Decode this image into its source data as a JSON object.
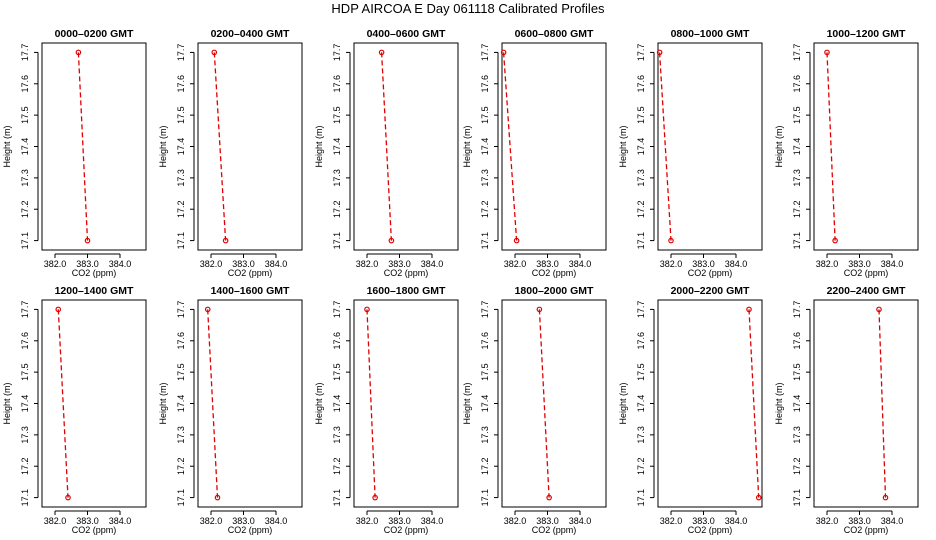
{
  "title": "HDP  AIRCOA E  Day 061118  Calibrated Profiles",
  "chart_data": [
    {
      "type": "line",
      "title": "0000–0200 GMT",
      "xlabel": "CO2 (ppm)",
      "ylabel": "Height (m)",
      "xlim": [
        381.6,
        384.8
      ],
      "ylim": [
        17.07,
        17.73
      ],
      "xticks": [
        "382.0",
        "383.0",
        "384.0"
      ],
      "xtick_values": [
        382,
        383,
        384
      ],
      "yticks": [
        "17.1",
        "17.2",
        "17.3",
        "17.4",
        "17.5",
        "17.6",
        "17.7"
      ],
      "ytick_values": [
        17.1,
        17.2,
        17.3,
        17.4,
        17.5,
        17.6,
        17.7
      ],
      "series": [
        {
          "x": [
            382.72,
            383.0
          ],
          "y": [
            17.7,
            17.1
          ]
        }
      ]
    },
    {
      "type": "line",
      "title": "0200–0400 GMT",
      "xlabel": "CO2 (ppm)",
      "ylabel": "Height (m)",
      "xlim": [
        381.6,
        384.8
      ],
      "ylim": [
        17.07,
        17.73
      ],
      "xticks": [
        "382.0",
        "383.0",
        "384.0"
      ],
      "xtick_values": [
        382,
        383,
        384
      ],
      "yticks": [
        "17.1",
        "17.2",
        "17.3",
        "17.4",
        "17.5",
        "17.6",
        "17.7"
      ],
      "ytick_values": [
        17.1,
        17.2,
        17.3,
        17.4,
        17.5,
        17.6,
        17.7
      ],
      "series": [
        {
          "x": [
            382.1,
            382.45
          ],
          "y": [
            17.7,
            17.1
          ]
        }
      ]
    },
    {
      "type": "line",
      "title": "0400–0600 GMT",
      "xlabel": "CO2 (ppm)",
      "ylabel": "Height (m)",
      "xlim": [
        381.6,
        384.8
      ],
      "ylim": [
        17.07,
        17.73
      ],
      "xticks": [
        "382.0",
        "383.0",
        "384.0"
      ],
      "xtick_values": [
        382,
        383,
        384
      ],
      "yticks": [
        "17.1",
        "17.2",
        "17.3",
        "17.4",
        "17.5",
        "17.6",
        "17.7"
      ],
      "ytick_values": [
        17.1,
        17.2,
        17.3,
        17.4,
        17.5,
        17.6,
        17.7
      ],
      "series": [
        {
          "x": [
            382.45,
            382.75
          ],
          "y": [
            17.7,
            17.1
          ]
        }
      ]
    },
    {
      "type": "line",
      "title": "0600–0800 GMT",
      "xlabel": "CO2 (ppm)",
      "ylabel": "Height (m)",
      "xlim": [
        381.6,
        384.8
      ],
      "ylim": [
        17.07,
        17.73
      ],
      "xticks": [
        "382.0",
        "383.0",
        "384.0"
      ],
      "xtick_values": [
        382,
        383,
        384
      ],
      "yticks": [
        "17.1",
        "17.2",
        "17.3",
        "17.4",
        "17.5",
        "17.6",
        "17.7"
      ],
      "ytick_values": [
        17.1,
        17.2,
        17.3,
        17.4,
        17.5,
        17.6,
        17.7
      ],
      "series": [
        {
          "x": [
            381.65,
            382.05
          ],
          "y": [
            17.7,
            17.1
          ]
        }
      ]
    },
    {
      "type": "line",
      "title": "0800–1000 GMT",
      "xlabel": "CO2 (ppm)",
      "ylabel": "Height (m)",
      "xlim": [
        381.6,
        384.8
      ],
      "ylim": [
        17.07,
        17.73
      ],
      "xticks": [
        "382.0",
        "383.0",
        "384.0"
      ],
      "xtick_values": [
        382,
        383,
        384
      ],
      "yticks": [
        "17.1",
        "17.2",
        "17.3",
        "17.4",
        "17.5",
        "17.6",
        "17.7"
      ],
      "ytick_values": [
        17.1,
        17.2,
        17.3,
        17.4,
        17.5,
        17.6,
        17.7
      ],
      "series": [
        {
          "x": [
            381.65,
            382.0
          ],
          "y": [
            17.7,
            17.1
          ]
        }
      ]
    },
    {
      "type": "line",
      "title": "1000–1200 GMT",
      "xlabel": "CO2 (ppm)",
      "ylabel": "Height (m)",
      "xlim": [
        381.6,
        384.8
      ],
      "ylim": [
        17.07,
        17.73
      ],
      "xticks": [
        "382.0",
        "383.0",
        "384.0"
      ],
      "xtick_values": [
        382,
        383,
        384
      ],
      "yticks": [
        "17.1",
        "17.2",
        "17.3",
        "17.4",
        "17.5",
        "17.6",
        "17.7"
      ],
      "ytick_values": [
        17.1,
        17.2,
        17.3,
        17.4,
        17.5,
        17.6,
        17.7
      ],
      "series": [
        {
          "x": [
            382.0,
            382.25
          ],
          "y": [
            17.7,
            17.1
          ]
        }
      ]
    },
    {
      "type": "line",
      "title": "1200–1400 GMT",
      "xlabel": "CO2 (ppm)",
      "ylabel": "Height (m)",
      "xlim": [
        381.6,
        384.8
      ],
      "ylim": [
        17.07,
        17.73
      ],
      "xticks": [
        "382.0",
        "383.0",
        "384.0"
      ],
      "xtick_values": [
        382,
        383,
        384
      ],
      "yticks": [
        "17.1",
        "17.2",
        "17.3",
        "17.4",
        "17.5",
        "17.6",
        "17.7"
      ],
      "ytick_values": [
        17.1,
        17.2,
        17.3,
        17.4,
        17.5,
        17.6,
        17.7
      ],
      "series": [
        {
          "x": [
            382.1,
            382.4
          ],
          "y": [
            17.7,
            17.1
          ]
        }
      ]
    },
    {
      "type": "line",
      "title": "1400–1600 GMT",
      "xlabel": "CO2 (ppm)",
      "ylabel": "Height (m)",
      "xlim": [
        381.6,
        384.8
      ],
      "ylim": [
        17.07,
        17.73
      ],
      "xticks": [
        "382.0",
        "383.0",
        "384.0"
      ],
      "xtick_values": [
        382,
        383,
        384
      ],
      "yticks": [
        "17.1",
        "17.2",
        "17.3",
        "17.4",
        "17.5",
        "17.6",
        "17.7"
      ],
      "ytick_values": [
        17.1,
        17.2,
        17.3,
        17.4,
        17.5,
        17.6,
        17.7
      ],
      "series": [
        {
          "x": [
            381.9,
            382.2
          ],
          "y": [
            17.7,
            17.1
          ]
        }
      ]
    },
    {
      "type": "line",
      "title": "1600–1800 GMT",
      "xlabel": "CO2 (ppm)",
      "ylabel": "Height (m)",
      "xlim": [
        381.6,
        384.8
      ],
      "ylim": [
        17.07,
        17.73
      ],
      "xticks": [
        "382.0",
        "383.0",
        "384.0"
      ],
      "xtick_values": [
        382,
        383,
        384
      ],
      "yticks": [
        "17.1",
        "17.2",
        "17.3",
        "17.4",
        "17.5",
        "17.6",
        "17.7"
      ],
      "ytick_values": [
        17.1,
        17.2,
        17.3,
        17.4,
        17.5,
        17.6,
        17.7
      ],
      "series": [
        {
          "x": [
            382.0,
            382.25
          ],
          "y": [
            17.7,
            17.1
          ]
        }
      ]
    },
    {
      "type": "line",
      "title": "1800–2000 GMT",
      "xlabel": "CO2 (ppm)",
      "ylabel": "Height (m)",
      "xlim": [
        381.6,
        384.8
      ],
      "ylim": [
        17.07,
        17.73
      ],
      "xticks": [
        "382.0",
        "383.0",
        "384.0"
      ],
      "xtick_values": [
        382,
        383,
        384
      ],
      "yticks": [
        "17.1",
        "17.2",
        "17.3",
        "17.4",
        "17.5",
        "17.6",
        "17.7"
      ],
      "ytick_values": [
        17.1,
        17.2,
        17.3,
        17.4,
        17.5,
        17.6,
        17.7
      ],
      "series": [
        {
          "x": [
            382.75,
            383.05
          ],
          "y": [
            17.7,
            17.1
          ]
        }
      ]
    },
    {
      "type": "line",
      "title": "2000–2200 GMT",
      "xlabel": "CO2 (ppm)",
      "ylabel": "Height (m)",
      "xlim": [
        381.6,
        384.8
      ],
      "ylim": [
        17.07,
        17.73
      ],
      "xticks": [
        "382.0",
        "383.0",
        "384.0"
      ],
      "xtick_values": [
        382,
        383,
        384
      ],
      "yticks": [
        "17.1",
        "17.2",
        "17.3",
        "17.4",
        "17.5",
        "17.6",
        "17.7"
      ],
      "ytick_values": [
        17.1,
        17.2,
        17.3,
        17.4,
        17.5,
        17.6,
        17.7
      ],
      "series": [
        {
          "x": [
            384.4,
            384.7
          ],
          "y": [
            17.7,
            17.1
          ]
        }
      ]
    },
    {
      "type": "line",
      "title": "2200–2400 GMT",
      "xlabel": "CO2 (ppm)",
      "ylabel": "Height (m)",
      "xlim": [
        381.6,
        384.8
      ],
      "ylim": [
        17.07,
        17.73
      ],
      "xticks": [
        "382.0",
        "383.0",
        "384.0"
      ],
      "xtick_values": [
        382,
        383,
        384
      ],
      "yticks": [
        "17.1",
        "17.2",
        "17.3",
        "17.4",
        "17.5",
        "17.6",
        "17.7"
      ],
      "ytick_values": [
        17.1,
        17.2,
        17.3,
        17.4,
        17.5,
        17.6,
        17.7
      ],
      "series": [
        {
          "x": [
            383.6,
            383.8
          ],
          "y": [
            17.7,
            17.1
          ]
        }
      ]
    }
  ],
  "colors": {
    "series": "#e00000",
    "axes": "#000000",
    "background": "#ffffff"
  }
}
